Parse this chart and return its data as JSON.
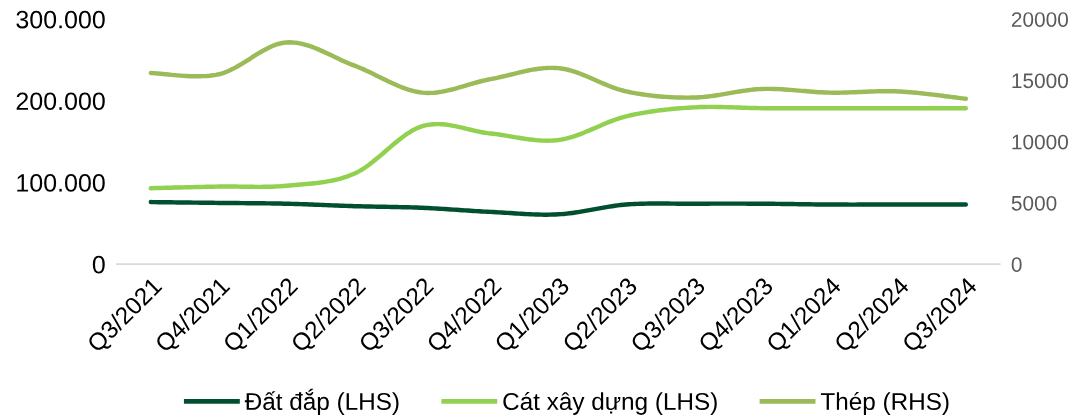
{
  "chart_data": {
    "type": "line",
    "categories": [
      "Q3/2021",
      "Q4/2021",
      "Q1/2022",
      "Q2/2022",
      "Q3/2022",
      "Q4/2022",
      "Q1/2023",
      "Q2/2023",
      "Q3/2023",
      "Q4/2023",
      "Q1/2024",
      "Q2/2024",
      "Q3/2024"
    ],
    "series": [
      {
        "name": "Đất đắp (LHS)",
        "color": "#00502f",
        "values": [
          76000,
          75000,
          74000,
          71000,
          69000,
          64000,
          61000,
          73000,
          74000,
          74000,
          73000,
          73000,
          73000
        ]
      },
      {
        "name": "Cát xây dựng (LHS)",
        "color": "#92d050",
        "values": [
          93000,
          95000,
          96000,
          111000,
          169000,
          160000,
          152000,
          181000,
          192000,
          191000,
          191000,
          191000,
          191000
        ]
      },
      {
        "name": "Thép (RHS)",
        "color": "#9bbb59",
        "axis": "y2",
        "values": [
          15600,
          15500,
          18100,
          16200,
          14000,
          15100,
          16000,
          14100,
          13600,
          14300,
          14000,
          14100,
          13500
        ]
      }
    ],
    "ylim": [
      0,
      300000
    ],
    "yticks": [
      0,
      {
        "value": 100000,
        "label": "100.000"
      },
      {
        "value": 200000,
        "label": "200.000"
      },
      {
        "value": 300000,
        "label": "300.000"
      }
    ],
    "y2lim": [
      0,
      20000
    ],
    "y2ticks": [
      0,
      5000,
      10000,
      15000,
      20000
    ],
    "legend": "bottom",
    "grid": false,
    "line_style": "solid"
  }
}
